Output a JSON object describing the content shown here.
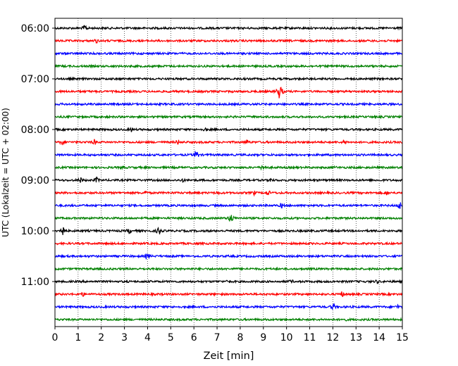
{
  "chart_data": {
    "type": "line",
    "title": "",
    "xlabel": "Zeit  [min]",
    "ylabel": "UTC (Lokalzeit = UTC + 02:00)",
    "xlim": [
      0,
      15
    ],
    "x_ticks": [
      0,
      1,
      2,
      3,
      4,
      5,
      6,
      7,
      8,
      9,
      10,
      11,
      12,
      13,
      14,
      15
    ],
    "x_tick_labels": [
      "0",
      "1",
      "2",
      "3",
      "4",
      "5",
      "6",
      "7",
      "8",
      "9",
      "10",
      "11",
      "12",
      "13",
      "14",
      "15"
    ],
    "y_tick_labels": [
      "06:00",
      "07:00",
      "08:00",
      "09:00",
      "10:00",
      "11:00"
    ],
    "y_tick_rows": [
      0,
      4,
      8,
      12,
      16,
      20
    ],
    "grid": "vertical dotted",
    "row_interval_minutes": 15,
    "colors": [
      "#000000",
      "#ff0000",
      "#0000ff",
      "#008000"
    ],
    "series": [
      {
        "start": "05:45",
        "color": "#000000",
        "events": [
          [
            1.3,
            6
          ]
        ]
      },
      {
        "start": "06:00",
        "color": "#ff0000",
        "events": [
          [
            1.8,
            4
          ]
        ]
      },
      {
        "start": "06:15",
        "color": "#0000ff",
        "events": []
      },
      {
        "start": "06:30",
        "color": "#008000",
        "events": []
      },
      {
        "start": "06:45",
        "color": "#000000",
        "events": []
      },
      {
        "start": "07:00",
        "color": "#ff0000",
        "events": [
          [
            9.7,
            12
          ]
        ]
      },
      {
        "start": "07:15",
        "color": "#0000ff",
        "events": []
      },
      {
        "start": "07:30",
        "color": "#008000",
        "events": []
      },
      {
        "start": "07:45",
        "color": "#000000",
        "events": [
          [
            3.3,
            4
          ],
          [
            6.5,
            4
          ]
        ]
      },
      {
        "start": "08:00",
        "color": "#ff0000",
        "events": [
          [
            0.3,
            5
          ],
          [
            1.7,
            5
          ],
          [
            5.3,
            5
          ],
          [
            8.3,
            5
          ],
          [
            12.5,
            5
          ]
        ]
      },
      {
        "start": "08:15",
        "color": "#0000ff",
        "events": [
          [
            6.1,
            7
          ]
        ]
      },
      {
        "start": "08:30",
        "color": "#008000",
        "events": [
          [
            2.9,
            4
          ],
          [
            9.0,
            6
          ],
          [
            12.1,
            3
          ]
        ]
      },
      {
        "start": "08:45",
        "color": "#000000",
        "events": [
          [
            1.1,
            5
          ],
          [
            1.8,
            5
          ],
          [
            5.5,
            4
          ],
          [
            9.3,
            4
          ]
        ]
      },
      {
        "start": "09:00",
        "color": "#ff0000",
        "events": [
          [
            3.9,
            4
          ],
          [
            7.0,
            4
          ],
          [
            8.6,
            4
          ],
          [
            9.2,
            5
          ],
          [
            14.3,
            4
          ]
        ]
      },
      {
        "start": "09:15",
        "color": "#0000ff",
        "events": [
          [
            9.8,
            5
          ],
          [
            14.9,
            7
          ]
        ]
      },
      {
        "start": "09:30",
        "color": "#008000",
        "events": [
          [
            7.6,
            8
          ]
        ]
      },
      {
        "start": "09:45",
        "color": "#000000",
        "events": [
          [
            0.3,
            10
          ],
          [
            3.2,
            5
          ],
          [
            4.5,
            7
          ]
        ]
      },
      {
        "start": "10:00",
        "color": "#ff0000",
        "events": []
      },
      {
        "start": "10:15",
        "color": "#0000ff",
        "events": [
          [
            4.0,
            6
          ]
        ]
      },
      {
        "start": "10:30",
        "color": "#008000",
        "events": []
      },
      {
        "start": "10:45",
        "color": "#000000",
        "events": [
          [
            7.5,
            4
          ],
          [
            10.2,
            4
          ],
          [
            13.9,
            4
          ]
        ]
      },
      {
        "start": "11:00",
        "color": "#ff0000",
        "events": [
          [
            1.2,
            4
          ],
          [
            12.4,
            5
          ]
        ]
      },
      {
        "start": "11:15",
        "color": "#0000ff",
        "events": [
          [
            12.0,
            6
          ],
          [
            14.8,
            4
          ]
        ]
      },
      {
        "start": "11:30",
        "color": "#008000",
        "events": [
          [
            12.5,
            4
          ]
        ]
      }
    ]
  }
}
